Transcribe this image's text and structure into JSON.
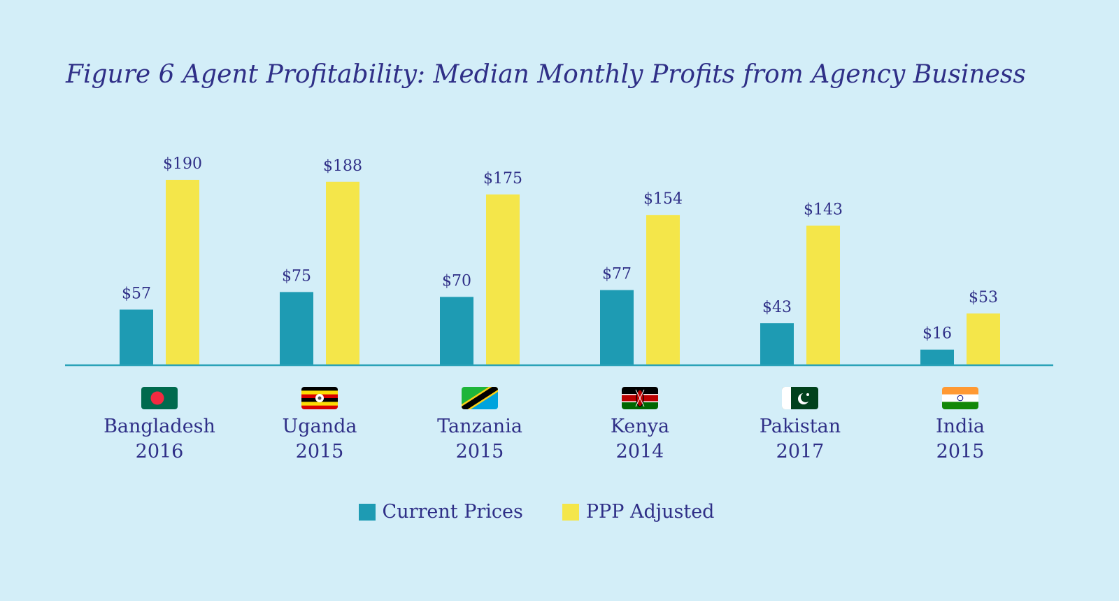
{
  "title": "Figure 6 Agent Profitability: Median Monthly Profits from Agency Business",
  "colors": {
    "background": "#d3eef8",
    "current": "#1e9bb3",
    "ppp": "#f4e64a",
    "text": "#2f2f87",
    "axis": "#2aa2b8"
  },
  "chart_data": {
    "type": "bar",
    "categories": [
      {
        "name": "Bangladesh",
        "year": "2016",
        "flag": "bangladesh-flag-icon"
      },
      {
        "name": "Uganda",
        "year": "2015",
        "flag": "uganda-flag-icon"
      },
      {
        "name": "Tanzania",
        "year": "2015",
        "flag": "tanzania-flag-icon"
      },
      {
        "name": "Kenya",
        "year": "2014",
        "flag": "kenya-flag-icon"
      },
      {
        "name": "Pakistan",
        "year": "2017",
        "flag": "pakistan-flag-icon"
      },
      {
        "name": "India",
        "year": "2015",
        "flag": "india-flag-icon"
      }
    ],
    "series": [
      {
        "name": "Current Prices",
        "values": [
          57,
          75,
          70,
          77,
          43,
          16
        ],
        "labels": [
          "$57",
          "$75",
          "$70",
          "$77",
          "$43",
          "$16"
        ]
      },
      {
        "name": "PPP Adjusted",
        "values": [
          190,
          188,
          175,
          154,
          143,
          53
        ],
        "labels": [
          "$190",
          "$188",
          "$175",
          "$154",
          "$143",
          "$53"
        ]
      }
    ],
    "ylim": [
      0,
      190
    ],
    "legend_position": "bottom",
    "grid": false
  }
}
